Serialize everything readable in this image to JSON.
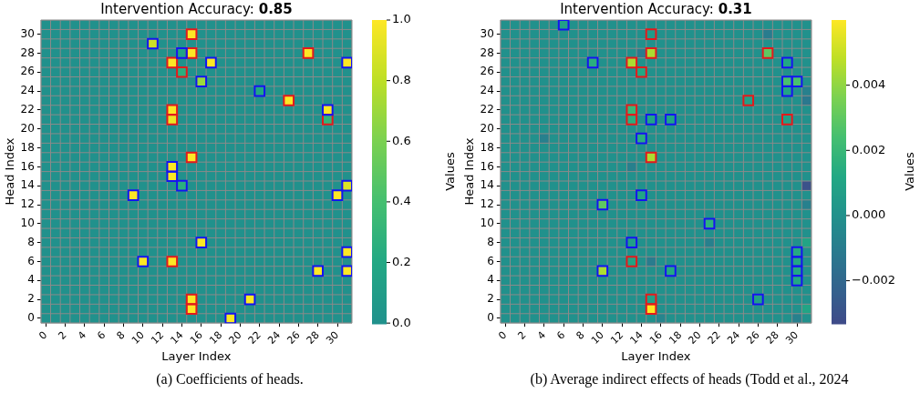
{
  "chart_data": [
    {
      "type": "heatmap",
      "title": "Intervention Accuracy: 0.85",
      "xlabel": "Layer Index",
      "ylabel": "Head Index",
      "clabel": "Values",
      "x": [
        0,
        1,
        2,
        3,
        4,
        5,
        6,
        7,
        8,
        9,
        10,
        11,
        12,
        13,
        14,
        15,
        16,
        17,
        18,
        19,
        20,
        21,
        22,
        23,
        24,
        25,
        26,
        27,
        28,
        29,
        30,
        31
      ],
      "xlim": [
        -0.5,
        31.5
      ],
      "xticks": [
        0,
        2,
        4,
        6,
        8,
        10,
        12,
        14,
        16,
        18,
        20,
        22,
        24,
        26,
        28,
        30
      ],
      "ylim": [
        -0.5,
        31.5
      ],
      "yticks": [
        0,
        2,
        4,
        6,
        8,
        10,
        12,
        14,
        16,
        18,
        20,
        22,
        24,
        26,
        28,
        30
      ],
      "cells": [
        [
          0,
          0,
          0,
          0,
          0,
          0,
          0,
          0,
          0,
          0,
          0,
          0,
          0,
          0,
          0,
          0,
          0,
          0,
          0,
          0,
          0,
          0,
          0,
          0,
          0,
          0,
          0,
          0,
          0,
          0,
          0,
          0
        ],
        [
          0,
          0,
          0,
          0,
          0,
          0,
          0,
          0,
          0,
          0,
          0,
          0,
          0,
          0,
          0,
          1,
          0,
          0,
          0,
          0,
          0,
          0,
          0,
          0,
          0,
          0,
          0,
          0,
          0,
          0,
          0,
          0
        ],
        [
          0,
          0,
          0,
          0,
          0,
          0,
          0,
          0,
          0,
          0,
          0,
          0.85,
          0,
          0,
          0,
          0,
          0,
          0,
          0,
          0,
          0,
          0,
          0,
          0,
          0,
          0,
          0,
          0,
          0,
          0,
          0,
          0
        ],
        [
          0,
          0,
          0,
          0,
          0,
          0,
          0,
          0,
          0,
          0,
          0,
          0,
          0,
          0,
          0.15,
          1,
          0,
          0,
          0,
          0,
          0,
          0,
          0,
          0,
          0,
          0,
          0,
          1,
          0,
          0,
          0,
          0
        ],
        [
          0,
          0,
          0,
          0,
          0,
          0,
          0,
          0,
          0,
          0,
          0,
          0,
          0,
          1,
          0,
          0,
          0,
          1,
          0,
          0,
          0,
          0,
          0,
          0,
          0,
          0,
          0,
          0,
          0,
          0,
          0,
          1
        ],
        [
          0,
          0,
          0,
          0,
          0,
          0,
          0,
          0,
          0,
          0,
          0,
          0,
          0,
          0,
          0.25,
          0,
          0,
          0,
          0,
          0,
          0,
          0,
          0,
          0,
          0,
          0,
          0,
          0,
          0,
          0,
          0,
          0
        ],
        [
          0,
          0,
          0,
          0,
          0,
          0,
          0,
          0,
          0,
          0,
          0,
          0,
          0,
          0,
          0,
          0,
          0.7,
          0,
          0,
          0,
          0,
          0,
          0,
          0,
          0,
          0,
          0,
          0,
          0,
          0,
          0,
          0
        ],
        [
          0,
          0,
          0,
          0,
          0,
          0,
          0,
          0,
          0,
          0,
          0,
          0,
          0,
          0,
          0,
          0,
          0,
          0,
          0,
          0,
          0,
          0,
          0.2,
          0,
          0,
          0,
          0,
          0,
          0,
          0,
          0,
          0
        ],
        [
          0,
          0,
          0,
          0,
          0,
          0,
          0,
          0,
          0,
          0,
          0,
          0,
          0,
          0,
          0,
          0,
          0,
          0,
          0,
          0,
          0,
          0,
          0,
          0,
          0,
          1,
          0,
          0,
          0,
          0,
          0,
          0
        ],
        [
          0,
          0,
          0,
          0,
          0,
          0,
          0,
          0,
          0,
          0,
          0,
          0,
          0,
          1,
          0,
          0,
          0,
          0,
          0,
          0,
          0,
          0,
          0,
          0,
          0,
          0,
          0,
          0,
          0,
          1,
          0,
          0
        ],
        [
          0,
          0,
          0,
          0,
          0,
          0,
          0,
          0,
          0,
          0,
          0,
          0,
          0,
          0.95,
          0,
          0,
          0,
          0,
          0,
          0,
          0,
          0,
          0,
          0,
          0,
          0,
          0,
          0,
          0,
          0.3,
          0,
          0
        ],
        [
          0,
          0,
          0,
          0,
          0,
          0,
          0,
          0,
          0,
          0,
          0,
          0,
          0,
          0,
          0,
          0,
          0,
          0,
          0,
          0,
          0,
          0,
          0,
          0,
          0,
          0,
          0,
          0,
          0,
          0,
          0,
          0
        ],
        [
          0,
          0,
          0,
          0,
          0,
          0,
          0,
          0,
          0,
          0,
          0,
          0,
          0,
          0,
          0,
          0,
          0,
          0,
          0,
          0,
          0,
          0,
          0,
          0,
          0,
          0,
          0,
          0,
          0,
          0,
          0,
          0
        ],
        [
          0,
          0,
          0,
          0,
          0,
          0,
          0,
          0,
          0,
          0,
          0,
          0,
          0,
          0,
          0,
          0,
          0,
          0,
          0,
          0,
          0,
          0,
          0,
          0,
          0,
          0,
          0,
          0,
          0,
          0,
          0,
          0
        ],
        [
          0,
          0,
          0,
          0,
          0,
          0,
          0,
          0,
          0,
          0,
          0,
          0,
          0,
          0,
          0,
          1,
          0,
          0,
          0,
          0,
          0,
          0,
          0,
          0,
          0,
          0,
          0,
          0,
          0,
          0,
          0,
          0
        ],
        [
          0,
          0,
          0,
          0,
          0,
          0,
          0,
          0,
          0,
          0,
          0,
          0,
          0,
          1,
          0,
          0,
          0,
          0,
          0,
          0,
          0,
          0,
          0,
          0,
          0,
          0,
          0,
          0,
          0,
          0,
          0,
          0
        ],
        [
          0,
          0,
          0,
          0,
          0,
          0,
          0,
          0,
          0,
          0,
          0,
          0,
          0,
          1,
          0,
          0,
          0,
          0,
          0,
          0,
          0,
          0,
          0,
          0,
          0,
          0,
          0,
          0,
          0,
          0,
          0,
          0
        ],
        [
          0,
          0,
          0,
          0,
          0,
          0,
          0,
          0,
          0,
          0,
          0,
          0,
          0,
          0,
          0.25,
          0,
          0,
          0,
          0,
          0,
          0,
          0,
          0,
          0,
          0,
          0,
          0,
          0,
          0,
          0,
          0,
          0.9
        ],
        [
          0,
          0,
          0,
          0,
          0,
          0,
          0,
          0,
          0,
          1,
          0,
          0,
          0,
          0,
          0,
          0,
          0,
          0,
          0,
          0,
          0,
          0,
          0,
          0,
          0,
          0,
          0,
          0,
          0,
          0,
          1,
          0
        ],
        [
          0,
          0,
          0,
          0,
          0,
          0,
          0,
          0,
          0,
          0,
          0,
          0,
          0,
          0,
          0,
          0,
          0,
          0,
          0,
          0,
          0,
          0,
          0,
          0,
          0,
          0,
          0,
          0,
          0,
          0,
          0,
          0
        ],
        [
          0,
          0,
          0,
          0,
          0,
          0,
          0,
          0,
          0,
          0,
          0,
          0,
          0,
          0,
          0,
          0,
          0,
          0,
          0,
          0,
          0,
          0,
          0,
          0,
          0,
          0,
          0,
          0,
          0,
          0,
          0,
          0
        ],
        [
          0,
          0,
          0,
          0,
          0,
          0,
          0,
          0,
          0,
          0,
          0,
          0,
          0,
          0,
          0,
          0,
          0,
          0,
          0,
          0,
          0,
          0,
          0,
          0,
          0,
          0,
          0,
          0,
          0,
          0,
          0,
          0
        ],
        [
          0,
          0,
          0,
          0,
          0,
          0,
          0,
          0,
          0,
          0,
          0,
          0,
          0,
          0,
          0,
          0,
          0,
          0,
          0,
          0,
          0,
          0,
          0,
          0,
          0,
          0,
          0,
          0,
          0,
          0,
          0,
          0
        ],
        [
          0,
          0,
          0,
          0,
          0,
          0,
          0,
          0,
          0,
          0,
          0,
          0,
          0,
          0,
          0,
          0,
          1,
          0,
          0,
          0,
          0,
          0,
          0,
          0,
          0,
          0,
          0,
          0,
          0,
          0,
          0,
          0
        ],
        [
          0,
          0,
          0,
          0,
          0,
          0,
          0,
          0,
          0,
          0,
          0,
          0,
          0,
          0,
          0,
          0,
          0,
          0,
          0,
          0,
          0,
          0,
          0,
          0,
          0,
          0,
          0,
          0,
          0,
          0,
          0,
          1
        ],
        [
          0,
          0,
          0,
          0,
          0,
          0,
          0,
          0,
          0,
          0,
          1,
          0,
          0,
          1,
          0,
          0,
          0,
          0,
          0,
          0,
          0,
          0,
          0,
          0,
          0,
          0,
          0,
          0,
          0,
          0,
          0,
          0
        ],
        [
          0,
          0,
          0,
          0,
          0,
          0,
          0,
          0,
          0,
          0,
          0,
          0,
          0,
          0,
          0,
          0,
          0,
          0,
          0,
          0,
          0,
          0,
          0,
          0,
          0,
          0,
          0,
          0,
          1,
          0,
          0,
          1
        ],
        [
          0,
          0,
          0,
          0,
          0,
          0,
          0,
          0,
          0,
          0,
          0,
          0,
          0,
          0,
          0,
          0,
          0,
          0,
          0,
          0,
          0,
          0,
          0,
          0,
          0,
          0,
          0,
          0,
          0,
          0,
          0,
          0
        ],
        [
          0,
          0,
          0,
          0,
          0,
          0,
          0,
          0,
          0,
          0,
          0,
          0,
          0,
          0,
          0,
          0,
          0,
          0,
          0,
          0,
          0,
          0,
          0,
          0,
          0,
          0,
          0,
          0,
          0,
          0,
          0,
          0
        ],
        [
          0,
          0,
          0,
          0,
          0,
          0,
          0,
          0,
          0,
          0,
          0,
          0,
          0,
          0,
          0,
          1,
          0,
          0,
          0,
          0,
          0,
          1,
          0,
          0,
          0,
          0,
          0,
          0,
          0,
          0,
          0,
          0
        ],
        [
          0,
          0,
          0,
          0,
          0,
          0,
          0,
          0,
          0,
          0,
          0,
          0,
          0,
          0,
          0,
          1,
          0,
          0,
          0,
          0,
          0,
          0,
          0,
          0,
          0,
          0,
          0,
          0,
          0,
          0,
          0,
          0
        ],
        [
          0,
          0,
          0,
          0,
          0,
          0,
          0,
          0,
          0,
          0,
          0,
          0,
          0,
          0,
          0,
          0,
          0,
          0,
          0,
          1,
          0,
          0,
          0,
          0,
          0,
          0,
          0,
          0,
          0,
          0,
          0,
          0
        ]
      ],
      "clim": [
        0,
        1
      ],
      "cticks": [
        {
          "value": 0,
          "label": "0.0"
        },
        0.2,
        0.4,
        0.6,
        0.8,
        {
          "value": 1,
          "label": "1.0"
        }
      ],
      "series": [
        {
          "type": "scatter",
          "marker": "square",
          "x": [
            15,
            15,
            27,
            13,
            14,
            25,
            13,
            13,
            29,
            15,
            13,
            15,
            15,
            11,
            14,
            17,
            31,
            16,
            22,
            29,
            13,
            13,
            14,
            31,
            9,
            30,
            16,
            31,
            10,
            28,
            31,
            21,
            19
          ],
          "values": [
            30,
            28,
            28,
            27,
            26,
            23,
            22,
            21,
            21,
            17,
            6,
            2,
            1,
            29,
            28,
            27,
            27,
            25,
            24,
            22,
            16,
            15,
            14,
            14,
            13,
            13,
            8,
            7,
            6,
            5,
            5,
            2,
            0
          ],
          "colors": [
            "#e31a1c",
            "#e31a1c",
            "#e31a1c",
            "#e31a1c",
            "#e31a1c",
            "#e31a1c",
            "#e31a1c",
            "#e31a1c",
            "#e31a1c",
            "#e31a1c",
            "#e31a1c",
            "#e31a1c",
            "#e31a1c",
            "#1414f0",
            "#1414f0",
            "#1414f0",
            "#1414f0",
            "#1414f0",
            "#1414f0",
            "#1414f0",
            "#1414f0",
            "#1414f0",
            "#1414f0",
            "#1414f0",
            "#1414f0",
            "#1414f0",
            "#1414f0",
            "#1414f0",
            "#1414f0",
            "#1414f0",
            "#1414f0",
            "#1414f0",
            "#1414f0"
          ]
        }
      ],
      "annotations": [
        "(a) Coefficients of heads."
      ]
    },
    {
      "type": "heatmap",
      "title": "Intervention Accuracy: 0.31",
      "xlabel": "Layer Index",
      "ylabel": "Head Index",
      "clabel": "Values",
      "x": [
        0,
        1,
        2,
        3,
        4,
        5,
        6,
        7,
        8,
        9,
        10,
        11,
        12,
        13,
        14,
        15,
        16,
        17,
        18,
        19,
        20,
        21,
        22,
        23,
        24,
        25,
        26,
        27,
        28,
        29,
        30,
        31
      ],
      "xlim": [
        -0.5,
        31.5
      ],
      "xticks": [
        0,
        2,
        4,
        6,
        8,
        10,
        12,
        14,
        16,
        18,
        20,
        22,
        24,
        26,
        28,
        30
      ],
      "ylim": [
        -0.5,
        31.5
      ],
      "yticks": [
        0,
        2,
        4,
        6,
        8,
        10,
        12,
        14,
        16,
        18,
        20,
        22,
        24,
        26,
        28,
        30
      ],
      "cells": [
        [
          0,
          0,
          0,
          0,
          0,
          0,
          0.0008,
          0,
          0,
          0,
          0,
          0,
          0,
          0,
          0,
          0,
          0,
          0,
          0,
          0,
          0,
          0,
          0,
          0,
          0,
          0,
          0,
          0,
          0,
          0,
          0,
          0
        ],
        [
          0,
          0,
          0,
          0,
          0,
          0,
          0,
          0,
          0,
          0,
          0,
          0,
          0,
          0,
          0,
          0.0005,
          0,
          0,
          0,
          0,
          0,
          0,
          0,
          0,
          0,
          0,
          0,
          -0.001,
          0,
          0,
          0,
          0
        ],
        [
          0,
          0,
          0,
          0,
          0,
          0,
          0,
          0,
          0,
          0,
          0,
          0,
          0,
          0,
          0,
          0,
          0,
          0,
          0,
          0,
          0,
          0,
          0,
          0,
          0,
          0,
          0,
          0,
          0,
          0,
          0,
          0
        ],
        [
          0,
          0,
          0,
          0,
          0,
          0,
          0,
          0,
          0,
          0,
          0,
          0,
          0,
          0,
          -0.001,
          0.0045,
          0,
          0,
          0,
          0,
          0,
          0,
          0,
          0,
          0,
          0,
          0,
          0.003,
          0,
          0,
          0,
          0
        ],
        [
          0,
          0,
          0,
          0,
          0,
          0,
          0,
          0,
          0,
          0.0015,
          0,
          0,
          0,
          0.0045,
          0,
          0,
          0,
          0,
          0,
          0,
          0,
          0,
          0,
          0,
          0,
          0,
          0,
          0,
          0,
          0.0012,
          0,
          0
        ],
        [
          0,
          0,
          0,
          0,
          0,
          0,
          0,
          0,
          0,
          0,
          0,
          0,
          0,
          0,
          0.0012,
          0,
          0,
          0,
          0,
          0,
          0,
          0,
          0,
          0,
          0,
          0,
          0,
          0,
          0,
          0,
          0,
          0
        ],
        [
          0,
          0,
          0,
          0,
          0,
          0,
          0,
          0,
          0,
          0,
          0,
          0,
          0,
          0,
          0,
          0,
          0,
          0,
          0,
          0,
          0,
          0,
          0,
          0,
          0,
          0,
          0,
          0,
          0,
          0.0025,
          0.0025,
          0
        ],
        [
          0,
          0,
          0,
          0,
          0,
          0,
          0,
          0,
          0,
          0,
          0,
          0,
          0,
          0,
          0,
          0,
          0,
          0,
          0,
          0,
          0,
          0,
          0,
          0,
          0,
          0,
          0,
          0,
          0,
          0.001,
          0,
          -0.0008
        ],
        [
          0,
          0,
          0,
          0,
          0,
          0,
          0,
          0,
          0,
          0,
          0,
          0,
          0,
          0,
          0,
          0,
          0,
          0,
          0,
          0,
          0,
          0,
          0,
          0,
          0,
          0.0008,
          0,
          0,
          0,
          0,
          0,
          -0.0012
        ],
        [
          0,
          0,
          0,
          0,
          0,
          0,
          0,
          0,
          0,
          0,
          0,
          0,
          0,
          0.002,
          0,
          0,
          0,
          0,
          0,
          0,
          0,
          0,
          0,
          0,
          0,
          0,
          0,
          0,
          0,
          0,
          0,
          0
        ],
        [
          0,
          0,
          0,
          0,
          0,
          0,
          0,
          0,
          0,
          0,
          0,
          0,
          0,
          0.0015,
          0,
          0.001,
          0,
          0.001,
          0,
          0,
          0,
          0,
          0,
          0,
          0,
          0,
          0,
          0,
          0,
          0.0008,
          0,
          0
        ],
        [
          0,
          0,
          0,
          0,
          0,
          0,
          0,
          0,
          0,
          0,
          0,
          0,
          0,
          0,
          0,
          0,
          0,
          0,
          0,
          0,
          0,
          0,
          0,
          0,
          0,
          0,
          0,
          0,
          0,
          0,
          0,
          0
        ],
        [
          0,
          0,
          0,
          0,
          -0.0008,
          0,
          0,
          0,
          0,
          0,
          0,
          0,
          0,
          0,
          0.0015,
          0,
          0,
          0,
          0,
          0,
          0,
          0,
          0,
          0,
          0,
          0,
          0,
          0,
          0,
          0,
          0,
          0
        ],
        [
          0,
          0,
          0,
          0,
          0,
          0,
          0,
          0,
          0,
          0,
          0,
          0,
          0,
          0,
          0,
          0,
          0,
          0,
          0,
          0,
          0,
          0,
          0,
          0,
          0,
          0,
          0,
          0,
          0,
          0,
          0,
          0
        ],
        [
          0,
          0,
          0,
          0,
          0,
          0,
          0,
          0,
          0,
          0,
          0,
          0,
          0,
          0,
          0,
          0.0045,
          0,
          0,
          0,
          0,
          0,
          0,
          0,
          0,
          0,
          0,
          0,
          0,
          0,
          0,
          0,
          0
        ],
        [
          0,
          0,
          0,
          0,
          0,
          0,
          0,
          0,
          0,
          0,
          0,
          0,
          0,
          -0.0008,
          0,
          0,
          0,
          0,
          0,
          0,
          0,
          0,
          0,
          0,
          0,
          0,
          0,
          0,
          0,
          0,
          0,
          0
        ],
        [
          0,
          0,
          0,
          0,
          0,
          0,
          0,
          0,
          0,
          0,
          0,
          0,
          0,
          0,
          0,
          0,
          0,
          0,
          0,
          0,
          0,
          0,
          0,
          0,
          0,
          0,
          0,
          0,
          0,
          0,
          0,
          0
        ],
        [
          0,
          0,
          0,
          0,
          0,
          0,
          0,
          0,
          0,
          0,
          0,
          0,
          0,
          0,
          0,
          0,
          0,
          0,
          0,
          0,
          0,
          0,
          0,
          0,
          0,
          0,
          0,
          0,
          0,
          0,
          0,
          -0.003
        ],
        [
          0,
          0,
          0,
          0,
          0,
          0,
          0,
          0,
          0,
          0,
          0,
          0,
          0,
          0,
          0.001,
          0,
          0,
          0,
          0,
          0,
          0,
          0,
          0,
          0,
          0,
          0,
          0,
          0,
          0,
          0,
          0,
          0
        ],
        [
          0,
          0,
          0,
          0,
          0,
          0,
          0,
          0,
          0,
          0,
          0.003,
          0,
          0,
          0,
          0,
          0,
          0,
          0,
          0,
          0,
          0,
          0,
          0,
          0,
          0,
          0,
          0,
          0,
          0,
          0,
          0,
          -0.0008
        ],
        [
          0,
          0,
          0,
          0,
          0,
          0,
          0,
          0,
          0,
          0,
          0,
          0,
          0,
          0,
          0,
          0,
          0,
          0,
          0,
          0,
          0,
          0,
          0,
          0,
          0,
          0,
          0,
          0,
          0,
          0,
          0,
          0
        ],
        [
          0,
          0,
          0,
          0,
          0,
          0,
          0,
          0,
          0,
          0,
          0,
          0,
          0,
          0,
          0,
          0,
          0,
          0,
          0,
          0,
          0,
          0.0017,
          0,
          0,
          0,
          0,
          0,
          0,
          0,
          0,
          0,
          0
        ],
        [
          0,
          0,
          0,
          0,
          0,
          0,
          0,
          0,
          0,
          0,
          0,
          0,
          0,
          0,
          0,
          0,
          0,
          0,
          0,
          0,
          0,
          0,
          0,
          0,
          0,
          0,
          0,
          0,
          0,
          0,
          0,
          0
        ],
        [
          0,
          0,
          0,
          0,
          0,
          0,
          0,
          0,
          0,
          0,
          0,
          0,
          0,
          0.0007,
          0,
          0,
          0,
          0,
          0,
          0,
          0,
          -0.0008,
          0,
          0,
          0,
          0,
          0,
          0,
          0,
          0,
          0,
          0.001
        ],
        [
          0,
          0,
          0,
          0,
          0,
          0,
          0,
          0,
          0,
          0,
          0,
          0,
          0,
          0,
          0,
          0,
          0,
          0,
          0,
          0,
          0,
          0,
          0,
          0,
          0,
          0,
          0,
          0,
          0,
          0,
          0.0013,
          0
        ],
        [
          0,
          0,
          0,
          0,
          0,
          0,
          0,
          0,
          0,
          0,
          0,
          0,
          0,
          0.001,
          0,
          -0.001,
          0,
          0,
          0,
          0,
          0,
          0,
          0,
          0,
          0,
          0,
          0,
          0,
          0,
          0,
          0.0012,
          0
        ],
        [
          0,
          0,
          0,
          0,
          0,
          0,
          0,
          0,
          0,
          0,
          0.0045,
          0,
          0,
          0,
          0,
          0,
          0,
          0.0013,
          0,
          0,
          0,
          0,
          0,
          0,
          0,
          0,
          0,
          0,
          0,
          0,
          0.0012,
          0
        ],
        [
          0,
          0,
          0,
          0,
          0,
          0,
          0,
          0,
          0,
          0,
          0,
          0,
          0,
          0,
          0,
          0,
          0,
          0,
          0,
          0,
          0,
          0,
          0,
          0,
          0,
          0,
          0,
          0,
          0,
          0,
          0.0012,
          0
        ],
        [
          0,
          0,
          0,
          0,
          0,
          0,
          0,
          0,
          0,
          0,
          0,
          0,
          0,
          0,
          0,
          0,
          0,
          0,
          0,
          0,
          0,
          0,
          0,
          0,
          0,
          0,
          0,
          0,
          0,
          0,
          0,
          0
        ],
        [
          0,
          0,
          0,
          0,
          0,
          0,
          0,
          0,
          0,
          0,
          0,
          0,
          0,
          0,
          0,
          0.0008,
          0,
          0,
          0,
          0,
          0,
          0,
          0,
          0,
          0,
          0,
          0.0008,
          0,
          0,
          0,
          0,
          0
        ],
        [
          0,
          0,
          0,
          0,
          0,
          0,
          0,
          0,
          0,
          0,
          0,
          0,
          0,
          0,
          0,
          0.006,
          0,
          0,
          0,
          0,
          0,
          0,
          0,
          0,
          0,
          0,
          0,
          0,
          0,
          0,
          0,
          0.001
        ],
        [
          0,
          0,
          0,
          0,
          0,
          0,
          0,
          0,
          0,
          0,
          0,
          0,
          0,
          0,
          0,
          0,
          -0.0006,
          0,
          0,
          0,
          0,
          0,
          0,
          0,
          0,
          0,
          0,
          0,
          0,
          0,
          -0.0008,
          0
        ]
      ],
      "clim": [
        -0.0033,
        0.006
      ],
      "cticks": [
        {
          "value": -0.002,
          "label": "−0.002"
        },
        {
          "value": 0,
          "label": "0.000"
        },
        0.002,
        0.004
      ],
      "series": [
        {
          "type": "scatter",
          "marker": "square",
          "x": [
            15,
            15,
            27,
            13,
            14,
            25,
            13,
            13,
            29,
            15,
            13,
            15,
            15,
            6,
            9,
            29,
            29,
            30,
            29,
            15,
            17,
            14,
            14,
            10,
            21,
            13,
            30,
            30,
            10,
            17,
            30,
            30,
            26
          ],
          "values": [
            30,
            28,
            28,
            27,
            26,
            23,
            22,
            21,
            21,
            17,
            6,
            2,
            1,
            31,
            27,
            27,
            25,
            25,
            24,
            21,
            21,
            19,
            13,
            12,
            10,
            8,
            7,
            6,
            5,
            5,
            5,
            4,
            2
          ],
          "colors": [
            "#e31a1c",
            "#e31a1c",
            "#e31a1c",
            "#e31a1c",
            "#e31a1c",
            "#e31a1c",
            "#e31a1c",
            "#e31a1c",
            "#e31a1c",
            "#e31a1c",
            "#e31a1c",
            "#e31a1c",
            "#e31a1c",
            "#1414f0",
            "#1414f0",
            "#1414f0",
            "#1414f0",
            "#1414f0",
            "#1414f0",
            "#1414f0",
            "#1414f0",
            "#1414f0",
            "#1414f0",
            "#1414f0",
            "#1414f0",
            "#1414f0",
            "#1414f0",
            "#1414f0",
            "#1414f0",
            "#1414f0",
            "#1414f0",
            "#1414f0",
            "#1414f0"
          ]
        }
      ],
      "annotations": [
        "(b) Average indirect effects of heads (Todd et al., 2024"
      ]
    }
  ]
}
